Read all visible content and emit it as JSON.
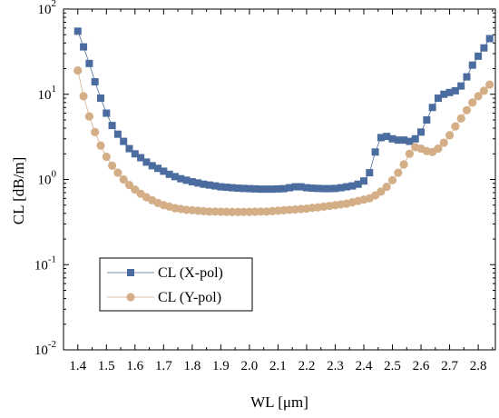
{
  "chart_data": {
    "type": "line",
    "xlabel": "WL  [μm]",
    "ylabel": "CL [dB/m]",
    "y_scale": "log",
    "xlim": [
      1.35,
      2.86
    ],
    "ylim": [
      0.01,
      100
    ],
    "x_ticks": [
      "1.4",
      "1.5",
      "1.6",
      "1.7",
      "1.8",
      "1.9",
      "2.0",
      "2.1",
      "2.2",
      "2.3",
      "2.4",
      "2.5",
      "2.6",
      "2.7",
      "2.8"
    ],
    "y_ticks": [
      {
        "value": 0.01,
        "base": "10",
        "exp": "-2"
      },
      {
        "value": 0.1,
        "base": "10",
        "exp": "-1"
      },
      {
        "value": 1,
        "base": "10",
        "exp": "0"
      },
      {
        "value": 10,
        "base": "10",
        "exp": "1"
      },
      {
        "value": 100,
        "base": "10",
        "exp": "2"
      }
    ],
    "grid": false,
    "legend_position": "bottom-left",
    "series": [
      {
        "name": "CL (X-pol)",
        "color": "#4a6c9e",
        "marker": "square",
        "points": [
          [
            1.4,
            55
          ],
          [
            1.42,
            36
          ],
          [
            1.44,
            23
          ],
          [
            1.46,
            14
          ],
          [
            1.48,
            9
          ],
          [
            1.5,
            6
          ],
          [
            1.52,
            4.3
          ],
          [
            1.54,
            3.4
          ],
          [
            1.56,
            2.8
          ],
          [
            1.58,
            2.3
          ],
          [
            1.6,
            2.0
          ],
          [
            1.62,
            1.8
          ],
          [
            1.64,
            1.6
          ],
          [
            1.66,
            1.45
          ],
          [
            1.68,
            1.35
          ],
          [
            1.7,
            1.25
          ],
          [
            1.72,
            1.15
          ],
          [
            1.74,
            1.08
          ],
          [
            1.76,
            1.02
          ],
          [
            1.78,
            0.98
          ],
          [
            1.8,
            0.94
          ],
          [
            1.82,
            0.91
          ],
          [
            1.84,
            0.88
          ],
          [
            1.86,
            0.86
          ],
          [
            1.88,
            0.84
          ],
          [
            1.9,
            0.82
          ],
          [
            1.92,
            0.81
          ],
          [
            1.94,
            0.8
          ],
          [
            1.96,
            0.79
          ],
          [
            1.98,
            0.785
          ],
          [
            2.0,
            0.78
          ],
          [
            2.02,
            0.775
          ],
          [
            2.04,
            0.77
          ],
          [
            2.06,
            0.77
          ],
          [
            2.08,
            0.77
          ],
          [
            2.1,
            0.775
          ],
          [
            2.12,
            0.78
          ],
          [
            2.14,
            0.8
          ],
          [
            2.16,
            0.82
          ],
          [
            2.18,
            0.82
          ],
          [
            2.2,
            0.8
          ],
          [
            2.22,
            0.79
          ],
          [
            2.24,
            0.785
          ],
          [
            2.26,
            0.78
          ],
          [
            2.28,
            0.78
          ],
          [
            2.3,
            0.785
          ],
          [
            2.32,
            0.8
          ],
          [
            2.34,
            0.82
          ],
          [
            2.36,
            0.84
          ],
          [
            2.38,
            0.88
          ],
          [
            2.4,
            0.96
          ],
          [
            2.42,
            1.2
          ],
          [
            2.44,
            2.1
          ],
          [
            2.46,
            3.1
          ],
          [
            2.48,
            3.2
          ],
          [
            2.5,
            3.0
          ],
          [
            2.52,
            2.9
          ],
          [
            2.54,
            2.9
          ],
          [
            2.56,
            2.8
          ],
          [
            2.58,
            3.0
          ],
          [
            2.6,
            3.6
          ],
          [
            2.62,
            5.0
          ],
          [
            2.64,
            7.0
          ],
          [
            2.66,
            9.0
          ],
          [
            2.68,
            10
          ],
          [
            2.7,
            10.5
          ],
          [
            2.72,
            11
          ],
          [
            2.74,
            12.5
          ],
          [
            2.76,
            16
          ],
          [
            2.78,
            22
          ],
          [
            2.8,
            28
          ],
          [
            2.82,
            35
          ],
          [
            2.84,
            45
          ]
        ]
      },
      {
        "name": "CL (Y-pol)",
        "color": "#d4ae87",
        "marker": "circle",
        "points": [
          [
            1.4,
            19
          ],
          [
            1.42,
            9.5
          ],
          [
            1.44,
            5.5
          ],
          [
            1.46,
            3.6
          ],
          [
            1.48,
            2.5
          ],
          [
            1.5,
            1.85
          ],
          [
            1.52,
            1.45
          ],
          [
            1.54,
            1.2
          ],
          [
            1.56,
            1.0
          ],
          [
            1.58,
            0.86
          ],
          [
            1.6,
            0.76
          ],
          [
            1.62,
            0.68
          ],
          [
            1.64,
            0.62
          ],
          [
            1.66,
            0.57
          ],
          [
            1.68,
            0.53
          ],
          [
            1.7,
            0.5
          ],
          [
            1.72,
            0.48
          ],
          [
            1.74,
            0.46
          ],
          [
            1.76,
            0.45
          ],
          [
            1.78,
            0.44
          ],
          [
            1.8,
            0.435
          ],
          [
            1.82,
            0.43
          ],
          [
            1.84,
            0.425
          ],
          [
            1.86,
            0.42
          ],
          [
            1.88,
            0.42
          ],
          [
            1.9,
            0.418
          ],
          [
            1.92,
            0.417
          ],
          [
            1.94,
            0.416
          ],
          [
            1.96,
            0.416
          ],
          [
            1.98,
            0.416
          ],
          [
            2.0,
            0.417
          ],
          [
            2.02,
            0.418
          ],
          [
            2.04,
            0.42
          ],
          [
            2.06,
            0.42
          ],
          [
            2.08,
            0.425
          ],
          [
            2.1,
            0.43
          ],
          [
            2.12,
            0.435
          ],
          [
            2.14,
            0.44
          ],
          [
            2.16,
            0.445
          ],
          [
            2.18,
            0.45
          ],
          [
            2.2,
            0.455
          ],
          [
            2.22,
            0.465
          ],
          [
            2.24,
            0.47
          ],
          [
            2.26,
            0.48
          ],
          [
            2.28,
            0.49
          ],
          [
            2.3,
            0.5
          ],
          [
            2.32,
            0.51
          ],
          [
            2.34,
            0.52
          ],
          [
            2.36,
            0.54
          ],
          [
            2.38,
            0.56
          ],
          [
            2.4,
            0.58
          ],
          [
            2.42,
            0.6
          ],
          [
            2.44,
            0.65
          ],
          [
            2.46,
            0.72
          ],
          [
            2.48,
            0.82
          ],
          [
            2.5,
            0.98
          ],
          [
            2.52,
            1.2
          ],
          [
            2.54,
            1.5
          ],
          [
            2.56,
            2.0
          ],
          [
            2.58,
            2.4
          ],
          [
            2.6,
            2.3
          ],
          [
            2.62,
            2.15
          ],
          [
            2.64,
            2.1
          ],
          [
            2.66,
            2.3
          ],
          [
            2.68,
            2.7
          ],
          [
            2.7,
            3.3
          ],
          [
            2.72,
            4.2
          ],
          [
            2.74,
            5.2
          ],
          [
            2.76,
            6.5
          ],
          [
            2.78,
            8.0
          ],
          [
            2.8,
            9.5
          ],
          [
            2.82,
            11
          ],
          [
            2.84,
            13
          ]
        ]
      }
    ]
  }
}
